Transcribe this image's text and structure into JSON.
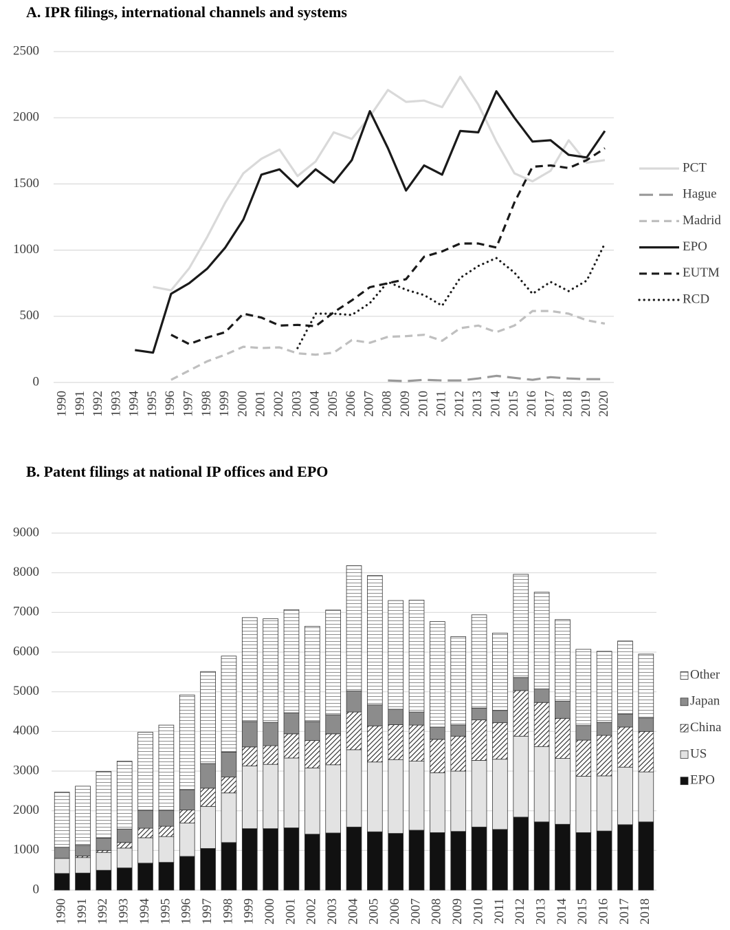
{
  "chart_data": [
    {
      "type": "line",
      "title": "A.  IPR filings, international channels and systems",
      "categories": [
        "1990",
        "1991",
        "1992",
        "1993",
        "1994",
        "1995",
        "1996",
        "1997",
        "1998",
        "1999",
        "2000",
        "2001",
        "2002",
        "2003",
        "2004",
        "2005",
        "2006",
        "2007",
        "2008",
        "2009",
        "2010",
        "2011",
        "2012",
        "2013",
        "2014",
        "2015",
        "2016",
        "2017",
        "2018",
        "2019",
        "2020"
      ],
      "ylim": [
        0,
        2500
      ],
      "yticks": [
        0,
        500,
        1000,
        1500,
        2000,
        2500
      ],
      "grid": true,
      "legend": "right",
      "series": [
        {
          "name": "PCT",
          "color": "#d9d9d9",
          "dash": "solid",
          "values": [
            null,
            null,
            null,
            null,
            null,
            722,
            696,
            863,
            1100,
            1360,
            1580,
            1690,
            1760,
            1560,
            1670,
            1890,
            1840,
            2010,
            2210,
            2120,
            2130,
            2080,
            2310,
            2100,
            1820,
            1580,
            1520,
            1600,
            1830,
            1660,
            1680
          ]
        },
        {
          "name": "Hague",
          "color": "#999999",
          "dash": "long-dash",
          "values": [
            null,
            null,
            null,
            null,
            null,
            null,
            null,
            null,
            null,
            null,
            null,
            null,
            null,
            null,
            null,
            null,
            null,
            null,
            15,
            10,
            20,
            15,
            15,
            30,
            50,
            35,
            20,
            40,
            30,
            25,
            25
          ]
        },
        {
          "name": "Madrid",
          "color": "#bfbfbf",
          "dash": "dash",
          "values": [
            null,
            null,
            null,
            null,
            null,
            null,
            20,
            90,
            160,
            210,
            270,
            260,
            265,
            220,
            210,
            225,
            320,
            300,
            345,
            350,
            360,
            315,
            410,
            430,
            380,
            430,
            540,
            540,
            520,
            470,
            445
          ]
        },
        {
          "name": "EPO",
          "color": "#1a1a1a",
          "dash": "solid",
          "values": [
            null,
            null,
            null,
            null,
            245,
            225,
            670,
            750,
            860,
            1020,
            1230,
            1570,
            1610,
            1480,
            1610,
            1510,
            1680,
            2050,
            1770,
            1450,
            1640,
            1570,
            1900,
            1890,
            2200,
            2000,
            1820,
            1830,
            1720,
            1700,
            1900
          ]
        },
        {
          "name": "EUTM",
          "color": "#1a1a1a",
          "dash": "dash",
          "values": [
            null,
            null,
            null,
            null,
            null,
            null,
            360,
            290,
            340,
            380,
            520,
            490,
            430,
            435,
            425,
            530,
            620,
            720,
            750,
            780,
            950,
            990,
            1050,
            1050,
            1020,
            1360,
            1630,
            1640,
            1620,
            1680,
            1770
          ]
        },
        {
          "name": "RCD",
          "color": "#1a1a1a",
          "dash": "dot",
          "values": [
            null,
            null,
            null,
            null,
            null,
            null,
            null,
            null,
            null,
            null,
            null,
            null,
            null,
            260,
            520,
            520,
            510,
            600,
            760,
            700,
            660,
            580,
            790,
            880,
            940,
            830,
            670,
            760,
            690,
            770,
            1050
          ]
        }
      ]
    },
    {
      "type": "stacked_bar",
      "title": "B.  Patent filings at national IP offices and EPO",
      "categories": [
        "1990",
        "1991",
        "1992",
        "1993",
        "1994",
        "1995",
        "1996",
        "1997",
        "1998",
        "1999",
        "2000",
        "2001",
        "2002",
        "2003",
        "2004",
        "2005",
        "2006",
        "2007",
        "2008",
        "2009",
        "2010",
        "2011",
        "2012",
        "2013",
        "2014",
        "2015",
        "2016",
        "2017",
        "2018"
      ],
      "ylim": [
        0,
        9000
      ],
      "yticks": [
        0,
        1000,
        2000,
        3000,
        4000,
        5000,
        6000,
        7000,
        8000,
        9000
      ],
      "grid": true,
      "legend": "right",
      "series": [
        {
          "name": "EPO",
          "color": "#111111",
          "pattern": "solid",
          "values": [
            420,
            430,
            500,
            560,
            680,
            700,
            850,
            1050,
            1200,
            1550,
            1550,
            1570,
            1410,
            1440,
            1590,
            1470,
            1430,
            1510,
            1450,
            1480,
            1590,
            1530,
            1840,
            1720,
            1660,
            1450,
            1490,
            1650,
            1720
          ]
        },
        {
          "name": "US",
          "color": "#e3e3e3",
          "pattern": "solid",
          "values": [
            380,
            390,
            450,
            500,
            640,
            650,
            840,
            1060,
            1250,
            1580,
            1620,
            1760,
            1670,
            1720,
            1950,
            1760,
            1860,
            1740,
            1510,
            1520,
            1680,
            1770,
            2040,
            1900,
            1660,
            1420,
            1390,
            1450,
            1260
          ]
        },
        {
          "name": "China",
          "color": "#222222",
          "pattern": "diagonal-hatch",
          "values": [
            0,
            40,
            50,
            140,
            240,
            260,
            330,
            460,
            400,
            480,
            470,
            610,
            690,
            780,
            950,
            910,
            880,
            910,
            840,
            880,
            1020,
            920,
            1150,
            1110,
            1010,
            910,
            1020,
            1010,
            1020
          ]
        },
        {
          "name": "Japan",
          "color": "#8c8c8c",
          "pattern": "solid",
          "values": [
            280,
            270,
            310,
            340,
            450,
            400,
            510,
            620,
            630,
            640,
            590,
            530,
            480,
            480,
            530,
            530,
            390,
            330,
            310,
            280,
            300,
            310,
            330,
            340,
            430,
            370,
            330,
            330,
            340
          ]
        },
        {
          "name": "Other",
          "color": "#8c8c8c",
          "pattern": "horizontal-lines",
          "values": [
            1390,
            1490,
            1680,
            1710,
            1970,
            2150,
            2390,
            2320,
            2420,
            2620,
            2610,
            2600,
            2400,
            2640,
            3160,
            3260,
            2740,
            2820,
            2660,
            2230,
            2350,
            1950,
            2600,
            2440,
            2060,
            1920,
            1790,
            1840,
            1610
          ]
        }
      ]
    }
  ]
}
